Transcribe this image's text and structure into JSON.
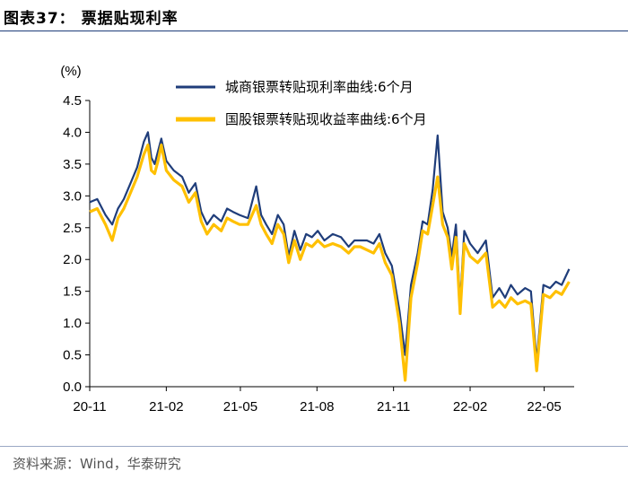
{
  "figure": {
    "title": "图表37：  票据贴现利率",
    "source": "资料来源：Wind，华泰研究"
  },
  "chart_data": {
    "type": "line",
    "unit": "(%)",
    "ylim": [
      0,
      4.5
    ],
    "yticks": [
      "0.0",
      "0.5",
      "1.0",
      "1.5",
      "2.0",
      "2.5",
      "3.0",
      "3.5",
      "4.0",
      "4.5"
    ],
    "xticks": [
      "20-11",
      "21-02",
      "21-05",
      "21-08",
      "21-11",
      "22-02",
      "22-05"
    ],
    "legend_position": "top-right",
    "series": [
      {
        "name": "城商银票转贴现利率曲线:6个月",
        "color": "#1f3d7a",
        "x": [
          "2020-11-01",
          "2020-11-10",
          "2020-11-20",
          "2020-11-28",
          "2020-12-05",
          "2020-12-12",
          "2020-12-20",
          "2020-12-28",
          "2021-01-05",
          "2021-01-10",
          "2021-01-14",
          "2021-01-18",
          "2021-01-22",
          "2021-01-26",
          "2021-02-01",
          "2021-02-10",
          "2021-02-20",
          "2021-02-28",
          "2021-03-08",
          "2021-03-15",
          "2021-03-22",
          "2021-03-30",
          "2021-04-08",
          "2021-04-15",
          "2021-04-22",
          "2021-04-30",
          "2021-05-10",
          "2021-05-20",
          "2021-05-26",
          "2021-06-01",
          "2021-06-08",
          "2021-06-15",
          "2021-06-22",
          "2021-06-28",
          "2021-07-05",
          "2021-07-12",
          "2021-07-19",
          "2021-07-26",
          "2021-08-02",
          "2021-08-10",
          "2021-08-20",
          "2021-08-30",
          "2021-09-08",
          "2021-09-15",
          "2021-09-22",
          "2021-09-30",
          "2021-10-08",
          "2021-10-15",
          "2021-10-22",
          "2021-10-30",
          "2021-11-08",
          "2021-11-15",
          "2021-11-22",
          "2021-11-30",
          "2021-12-06",
          "2021-12-12",
          "2021-12-18",
          "2021-12-24",
          "2021-12-30",
          "2022-01-05",
          "2022-01-10",
          "2022-01-15",
          "2022-01-20",
          "2022-01-25",
          "2022-02-01",
          "2022-02-10",
          "2022-02-20",
          "2022-02-28",
          "2022-03-08",
          "2022-03-15",
          "2022-03-22",
          "2022-03-30",
          "2022-04-08",
          "2022-04-15",
          "2022-04-22",
          "2022-04-30",
          "2022-05-08",
          "2022-05-15",
          "2022-05-22",
          "2022-05-31"
        ],
        "values": [
          2.9,
          2.95,
          2.7,
          2.55,
          2.8,
          2.95,
          3.2,
          3.45,
          3.85,
          4.0,
          3.6,
          3.5,
          3.7,
          3.9,
          3.55,
          3.4,
          3.3,
          3.05,
          3.2,
          2.75,
          2.55,
          2.7,
          2.6,
          2.8,
          2.75,
          2.7,
          2.65,
          3.15,
          2.7,
          2.55,
          2.4,
          2.7,
          2.55,
          2.05,
          2.45,
          2.15,
          2.4,
          2.35,
          2.45,
          2.3,
          2.4,
          2.35,
          2.2,
          2.3,
          2.3,
          2.3,
          2.25,
          2.4,
          2.1,
          1.9,
          1.2,
          0.5,
          1.6,
          2.1,
          2.6,
          2.55,
          3.1,
          3.95,
          2.75,
          2.5,
          2.05,
          2.55,
          1.3,
          2.45,
          2.25,
          2.1,
          2.3,
          1.4,
          1.55,
          1.4,
          1.6,
          1.45,
          1.55,
          1.5,
          0.4,
          1.6,
          1.55,
          1.65,
          1.6,
          1.85
        ]
      },
      {
        "name": "国股银票转贴现收益率曲线:6个月",
        "color": "#ffc000",
        "x": [
          "2020-11-01",
          "2020-11-10",
          "2020-11-20",
          "2020-11-28",
          "2020-12-05",
          "2020-12-12",
          "2020-12-20",
          "2020-12-28",
          "2021-01-05",
          "2021-01-10",
          "2021-01-14",
          "2021-01-18",
          "2021-01-22",
          "2021-01-26",
          "2021-02-01",
          "2021-02-10",
          "2021-02-20",
          "2021-02-28",
          "2021-03-08",
          "2021-03-15",
          "2021-03-22",
          "2021-03-30",
          "2021-04-08",
          "2021-04-15",
          "2021-04-22",
          "2021-04-30",
          "2021-05-10",
          "2021-05-20",
          "2021-05-26",
          "2021-06-01",
          "2021-06-08",
          "2021-06-15",
          "2021-06-22",
          "2021-06-28",
          "2021-07-05",
          "2021-07-12",
          "2021-07-19",
          "2021-07-26",
          "2021-08-02",
          "2021-08-10",
          "2021-08-20",
          "2021-08-30",
          "2021-09-08",
          "2021-09-15",
          "2021-09-22",
          "2021-09-30",
          "2021-10-08",
          "2021-10-15",
          "2021-10-22",
          "2021-10-30",
          "2021-11-08",
          "2021-11-15",
          "2021-11-22",
          "2021-11-30",
          "2021-12-06",
          "2021-12-12",
          "2021-12-18",
          "2021-12-24",
          "2021-12-30",
          "2022-01-05",
          "2022-01-10",
          "2022-01-15",
          "2022-01-20",
          "2022-01-25",
          "2022-02-01",
          "2022-02-10",
          "2022-02-20",
          "2022-02-28",
          "2022-03-08",
          "2022-03-15",
          "2022-03-22",
          "2022-03-30",
          "2022-04-08",
          "2022-04-15",
          "2022-04-22",
          "2022-04-30",
          "2022-05-08",
          "2022-05-15",
          "2022-05-22",
          "2022-05-31"
        ],
        "values": [
          2.75,
          2.8,
          2.55,
          2.3,
          2.65,
          2.8,
          3.05,
          3.3,
          3.65,
          3.8,
          3.4,
          3.35,
          3.55,
          3.8,
          3.4,
          3.25,
          3.15,
          2.9,
          3.05,
          2.6,
          2.4,
          2.55,
          2.45,
          2.65,
          2.6,
          2.55,
          2.55,
          2.85,
          2.55,
          2.4,
          2.25,
          2.55,
          2.4,
          1.95,
          2.3,
          2.0,
          2.25,
          2.2,
          2.3,
          2.2,
          2.25,
          2.2,
          2.1,
          2.2,
          2.2,
          2.15,
          2.1,
          2.25,
          1.95,
          1.75,
          1.0,
          0.1,
          1.4,
          1.95,
          2.45,
          2.4,
          2.85,
          3.3,
          2.55,
          2.35,
          1.85,
          2.35,
          1.15,
          2.25,
          2.05,
          1.95,
          2.1,
          1.25,
          1.35,
          1.25,
          1.4,
          1.3,
          1.35,
          1.3,
          0.25,
          1.45,
          1.4,
          1.5,
          1.45,
          1.65
        ]
      }
    ]
  }
}
